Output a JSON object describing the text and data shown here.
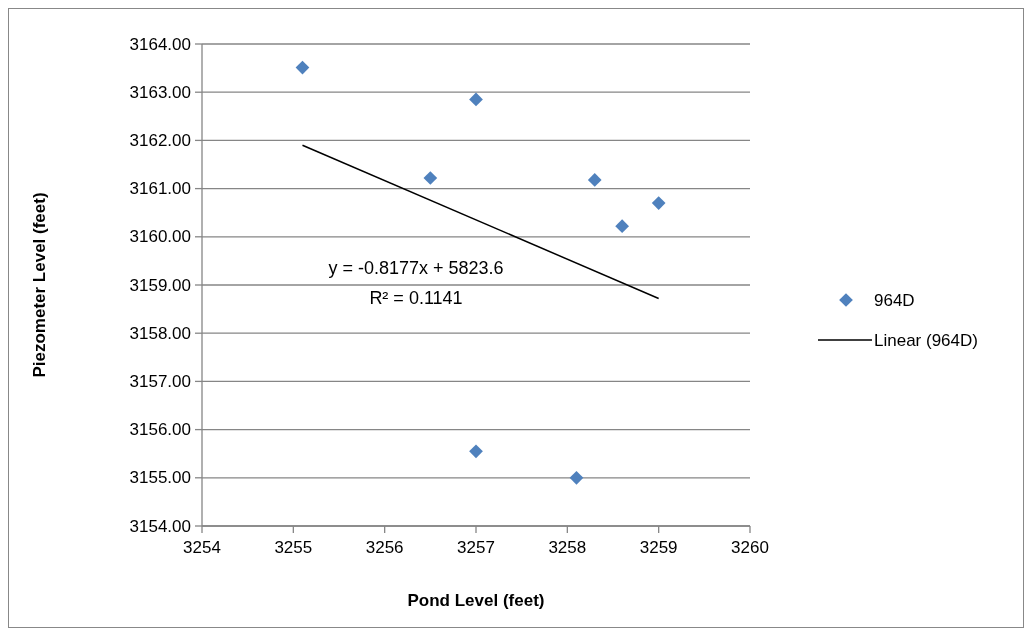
{
  "chart_data": {
    "type": "scatter",
    "xlabel": "Pond Level (feet)",
    "ylabel": "Piezometer Level (feet)",
    "xlim": [
      3254,
      3260
    ],
    "xticks": [
      3254,
      3255,
      3256,
      3257,
      3258,
      3259,
      3260
    ],
    "ylim": [
      3154,
      3164
    ],
    "yticks": [
      {
        "value": 3154,
        "label": "3154.00"
      },
      {
        "value": 3155,
        "label": "3155.00"
      },
      {
        "value": 3156,
        "label": "3156.00"
      },
      {
        "value": 3157,
        "label": "3157.00"
      },
      {
        "value": 3158,
        "label": "3158.00"
      },
      {
        "value": 3159,
        "label": "3159.00"
      },
      {
        "value": 3160,
        "label": "3160.00"
      },
      {
        "value": 3161,
        "label": "3161.00"
      },
      {
        "value": 3162,
        "label": "3162.00"
      },
      {
        "value": 3163,
        "label": "3163.00"
      },
      {
        "value": 3164,
        "label": "3164.00"
      }
    ],
    "grid": "y",
    "legend": "right",
    "marker": "diamond",
    "annotations": [
      "y = -0.8177x + 5823.6",
      "R² = 0.1141"
    ],
    "series": [
      {
        "name": "964D",
        "color": "#4f81bd",
        "x": [
          3255.1,
          3257.0,
          3256.5,
          3258.3,
          3258.6,
          3259.0,
          3257.0,
          3258.1
        ],
        "values": [
          3163.51,
          3162.85,
          3161.22,
          3161.18,
          3160.22,
          3160.7,
          3155.55,
          3155.0
        ]
      },
      {
        "name": "Linear (964D)",
        "type": "line",
        "color": "#000000",
        "line_style": "solid",
        "marker": "none",
        "x": [
          3255.1,
          3259.0
        ],
        "values": [
          3161.9,
          3158.72
        ]
      }
    ]
  }
}
